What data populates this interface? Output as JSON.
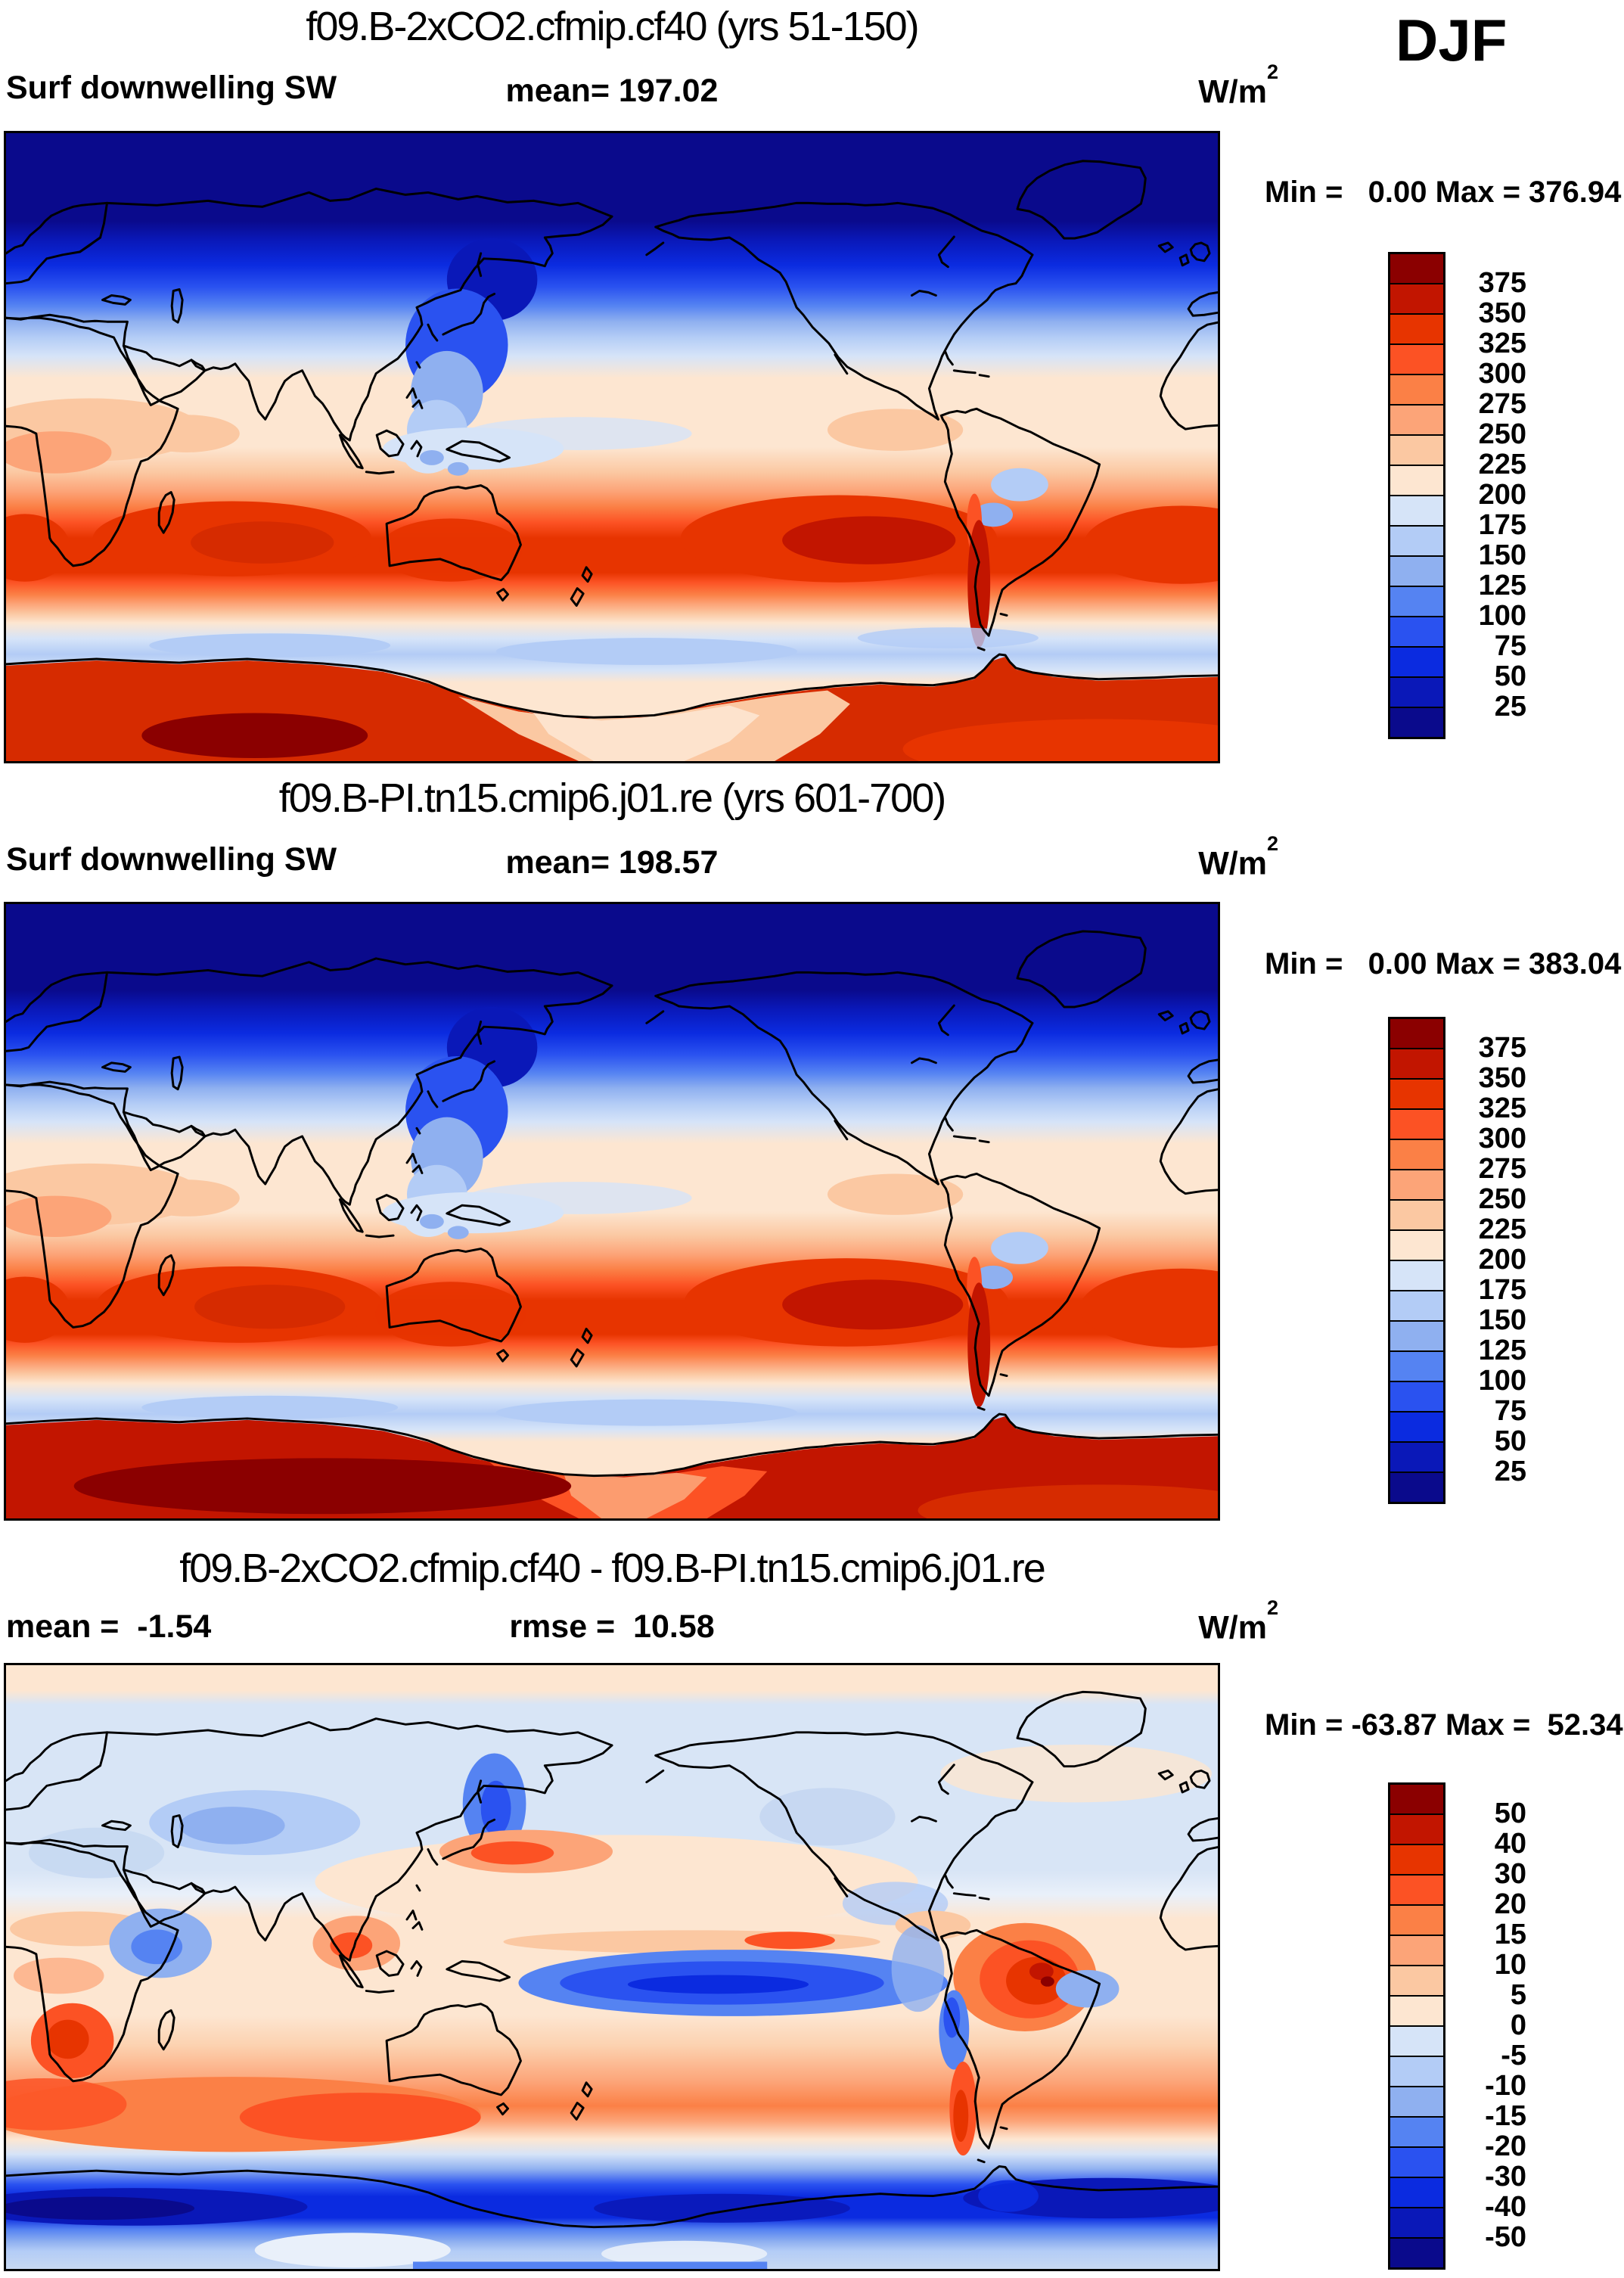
{
  "season_label": "DJF",
  "panels": [
    {
      "title": "f09.B-2xCO2.cfmip.cf40 (yrs 51-150)",
      "left_stat": "Surf downwelling SW",
      "center_stat": "mean= 197.02",
      "unit": "W/m",
      "unit_exp": "2",
      "minmax": "Min =   0.00 Max = 376.94",
      "colorbar": "sw"
    },
    {
      "title": "f09.B-PI.tn15.cmip6.j01.re (yrs 601-700)",
      "left_stat": "Surf downwelling SW",
      "center_stat": "mean= 198.57",
      "unit": "W/m",
      "unit_exp": "2",
      "minmax": "Min =   0.00 Max = 383.04",
      "colorbar": "sw"
    },
    {
      "title": "f09.B-2xCO2.cfmip.cf40 - f09.B-PI.tn15.cmip6.j01.re",
      "left_stat": "mean =  -1.54",
      "center_stat": "rmse =  10.58",
      "unit": "W/m",
      "unit_exp": "2",
      "minmax": "Min = -63.87 Max =  52.34",
      "colorbar": "diff"
    }
  ],
  "colorbars": {
    "sw": {
      "labels": [
        "375",
        "350",
        "325",
        "300",
        "275",
        "250",
        "225",
        "200",
        "175",
        "150",
        "125",
        "100",
        "75",
        "50",
        "25"
      ],
      "colors": [
        "#8b0000",
        "#c21500",
        "#e73400",
        "#fc5224",
        "#fb8046",
        "#fca478",
        "#fbc8a2",
        "#fde6d1",
        "#d6e4f8",
        "#b3ccf6",
        "#8fb0f0",
        "#5583f2",
        "#2a52f0",
        "#0b2be0",
        "#0a18b8",
        "#0a0a8c"
      ]
    },
    "diff": {
      "labels": [
        "50",
        "40",
        "30",
        "20",
        "15",
        "10",
        "5",
        "0",
        "-5",
        "-10",
        "-15",
        "-20",
        "-30",
        "-40",
        "-50"
      ],
      "colors": [
        "#8b0000",
        "#c21500",
        "#e73400",
        "#fc5224",
        "#fb8046",
        "#fca478",
        "#fbc8a2",
        "#fde6d1",
        "#d6e4f8",
        "#b3ccf6",
        "#8fb0f0",
        "#5583f2",
        "#2a52f0",
        "#0b2be0",
        "#0a18b8",
        "#0a0a8c"
      ]
    }
  },
  "chart_data": [
    {
      "type": "heatmap",
      "subtype": "filled_contour_world_map",
      "panel": "top",
      "title": "f09.B-2xCO2.cfmip.cf40 (yrs 51-150)",
      "variable": "Surf downwelling SW",
      "season": "DJF",
      "units": "W/m2",
      "mean": 197.02,
      "min": 0.0,
      "max": 376.94,
      "contour_levels": [
        25,
        50,
        75,
        100,
        125,
        150,
        175,
        200,
        225,
        250,
        275,
        300,
        325,
        350,
        375
      ],
      "palette_low_to_high": [
        "#0a0a8c",
        "#0a18b8",
        "#0b2be0",
        "#2a52f0",
        "#5583f2",
        "#8fb0f0",
        "#b3ccf6",
        "#d6e4f8",
        "#fde6d1",
        "#fbc8a2",
        "#fca478",
        "#fb8046",
        "#fc5224",
        "#e73400",
        "#c21500",
        "#8b0000"
      ],
      "projection": "global cylindrical equidistant, longitude 0-360E (Pacific centered), 90N top to 90S bottom",
      "pattern": "dark navy over Arctic polar night, blues through NH mid-latitudes, pale values near 200 W/m2 in NH subtropics, orange-red maxima 300-350 W/m2 across SH subtropics (S Indian, S Pacific, S Atlantic cores), pale band near 55S, deep red >325 W/m2 over sunlit Antarctica with darkest >375 blob at 300-420E sector"
    },
    {
      "type": "heatmap",
      "subtype": "filled_contour_world_map",
      "panel": "middle",
      "title": "f09.B-PI.tn15.cmip6.j01.re (yrs 601-700)",
      "variable": "Surf downwelling SW",
      "season": "DJF",
      "units": "W/m2",
      "mean": 198.57,
      "min": 0.0,
      "max": 383.04,
      "contour_levels": [
        25,
        50,
        75,
        100,
        125,
        150,
        175,
        200,
        225,
        250,
        275,
        300,
        325,
        350,
        375
      ],
      "palette_low_to_high": [
        "#0a0a8c",
        "#0a18b8",
        "#0b2be0",
        "#2a52f0",
        "#5583f2",
        "#8fb0f0",
        "#b3ccf6",
        "#d6e4f8",
        "#fde6d1",
        "#fbc8a2",
        "#fca478",
        "#fb8046",
        "#fc5224",
        "#e73400",
        "#c21500",
        "#8b0000"
      ],
      "projection": "global cylindrical equidistant, longitude 0-360E (Pacific centered), 90N top to 90S bottom",
      "pattern": "same structure as top panel; Antarctic plateau almost entirely deep red with broad >375 W/m2 maroon core"
    },
    {
      "type": "heatmap",
      "subtype": "filled_contour_world_map_difference",
      "panel": "bottom",
      "title": "f09.B-2xCO2.cfmip.cf40 - f09.B-PI.tn15.cmip6.j01.re",
      "variable": "Surf downwelling SW difference",
      "season": "DJF",
      "units": "W/m2",
      "mean": -1.54,
      "rmse": 10.58,
      "min": -63.87,
      "max": 52.34,
      "contour_levels": [
        -50,
        -40,
        -30,
        -20,
        -15,
        -10,
        -5,
        0,
        5,
        10,
        15,
        20,
        30,
        40,
        50
      ],
      "palette_low_to_high": [
        "#0a0a8c",
        "#0a18b8",
        "#0b2be0",
        "#2a52f0",
        "#5583f2",
        "#8fb0f0",
        "#b3ccf6",
        "#d6e4f8",
        "#fde6d1",
        "#fbc8a2",
        "#fca478",
        "#fb8046",
        "#fc5224",
        "#e73400",
        "#c21500",
        "#8b0000"
      ],
      "projection": "global cylindrical equidistant, longitude 0-360E (Pacific centered), 90N top to 90S bottom",
      "pattern": "mostly small +/-5 differences; blue patches over Siberia, Kamchatka, India; orange east of Japan; strong -20 to -30 band just south of equator in central Pacific; +30 to +50 red maximum over Amazonia; +15 to +20 belt near 50S south of Australia; -20 to -50 ring over Southern Ocean at 60-70S; pale blue Antarctic interior"
    }
  ]
}
